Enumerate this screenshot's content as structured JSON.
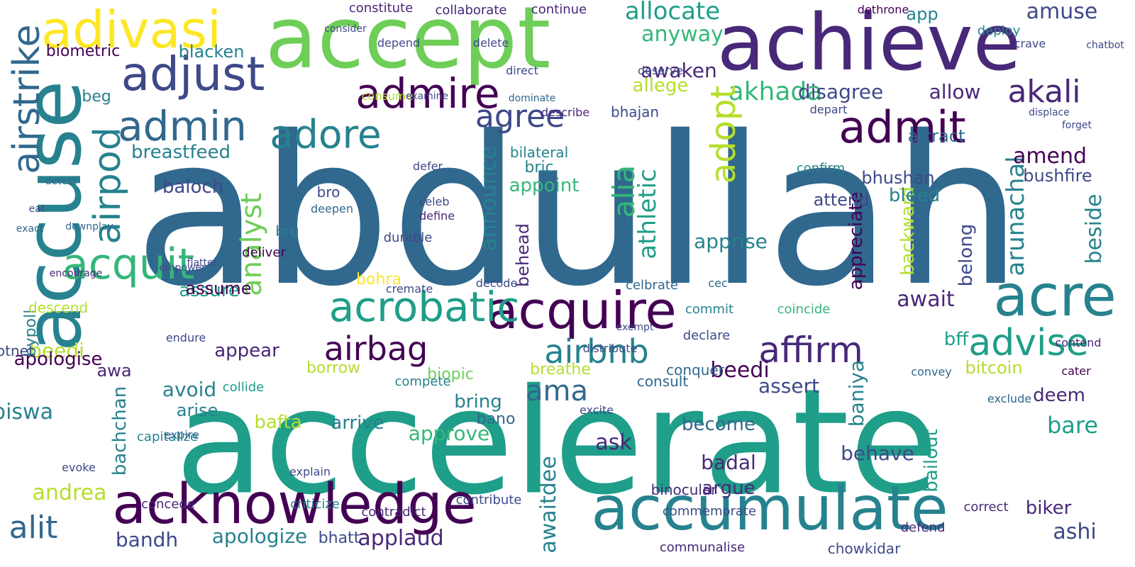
{
  "words": {
    "abdullah": "abdullah",
    "accelerate": "accelerate",
    "accept": "accept",
    "achieve": "achieve",
    "accuse": "accuse",
    "adivasi": "adivasi",
    "acknowledge": "acknowledge",
    "accumulate": "accumulate",
    "acquire": "acquire",
    "acre": "acre",
    "acrobatic": "acrobatic",
    "adjust": "adjust",
    "admire": "admire",
    "admit": "admit",
    "agree": "agree",
    "adore": "adore",
    "admin": "admin",
    "affirm": "affirm",
    "airbag": "airbag",
    "airbnb": "airbnb",
    "advise": "advise",
    "akhada": "akhada",
    "akali": "akali",
    "allocate": "allocate",
    "amuse": "amuse",
    "anyway": "anyway",
    "allow": "allow",
    "airstrike": "airstrike",
    "acquit": "acquit",
    "airpod": "airpod",
    "adopt": "adopt",
    "analyst": "analyst",
    "alia": "alia",
    "announce": "announce",
    "athletic": "athletic",
    "arunachal": "arunachal",
    "beside": "beside",
    "amend": "amend",
    "bushfire": "bushfire",
    "attract": "attract",
    "alit": "alit",
    "andrea": "andrea",
    "beedi": "beedi",
    "apologise": "apologise",
    "ama": "ama",
    "awaitdee": "awaitdee",
    "bachchan": "bachchan",
    "bailout": "bailout",
    "appreciate": "appreciate",
    "backward": "backward",
    "await": "await",
    "applaud": "applaud",
    "apologize": "apologize",
    "bandh": "bandh",
    "ashi": "ashi",
    "biker": "biker",
    "badal": "badal",
    "argue": "argue",
    "assure": "assure",
    "assume": "assume",
    "bypoll": "bypoll",
    "awa": "awa",
    "avoid": "avoid",
    "arise": "arise",
    "arrive": "arrive",
    "appear": "appear",
    "approve": "approve",
    "bring": "bring",
    "bafta": "bafta",
    "ask": "ask",
    "become": "become",
    "assert": "assert",
    "baniya": "baniya",
    "behave": "behave",
    "bare": "bare",
    "bitcoin": "bitcoin",
    "bff": "bff",
    "belong": "belong",
    "bleed": "bleed",
    "bhushan": "bhushan",
    "attend": "attend",
    "apprise": "apprise",
    "baloch": "baloch",
    "breastfeed": "breastfeed",
    "blacken": "blacken",
    "biometric": "biometric",
    "awaken": "awaken",
    "allege": "allege",
    "disagree": "disagree",
    "app": "app",
    "beg": "beg",
    "appoint": "appoint",
    "bilateral": "bilateral",
    "bric": "bric",
    "behead": "behead",
    "bohra": "bohra",
    "borrow": "borrow",
    "biopic": "biopic",
    "breathe": "breathe",
    "bano": "bano",
    "bhatt": "bhatt",
    "deliver": "deliver",
    "descend": "descend",
    "botnet": "botnet",
    "biswa": "biswa",
    "conquer": "conquer",
    "consult": "consult",
    "chowkidar": "chowkidar",
    "commemorate": "commemorate",
    "criticize": "criticize",
    "contradict": "contradict",
    "contribute": "contribute",
    "celbrate": "celbrate",
    "collide": "collide",
    "compete": "compete",
    "deem": "deem",
    "concede": "concede",
    "communalise": "communalise",
    "defend": "defend",
    "correct": "correct",
    "capitalize": "capitalize",
    "binocular": "binocular",
    "commit": "commit",
    "confirm": "confirm",
    "collaborate": "collaborate",
    "constitute": "constitute",
    "continue": "continue",
    "dethrone": "dethrone",
    "deploy": "deploy",
    "crave": "crave",
    "chatbot": "chatbot",
    "coincide": "coincide",
    "convey": "convey",
    "contend": "contend",
    "cater": "cater",
    "exclude": "exclude",
    "evoke": "evoke",
    "explain": "explain",
    "expire": "expire",
    "excite": "excite",
    "distribute": "distribute",
    "decode": "decode",
    "define": "define",
    "celeb": "celeb",
    "deepen": "deepen",
    "bro": "bro",
    "bru": "bru",
    "cremate": "cremate",
    "endure": "endure",
    "encourage": "encourage",
    "empower": "empower",
    "flatter": "flatter",
    "eat": "eat",
    "detect": "detect",
    "downplay": "downplay",
    "exact": "exact",
    "direct": "direct",
    "deserve": "deserve",
    "dominate": "dominate",
    "describe": "describe",
    "depart": "depart",
    "displace": "displace",
    "forget": "forget",
    "delete": "delete",
    "depend": "depend",
    "consider": "consider",
    "bhajan": "bhajan",
    "exempt": "exempt",
    "declare": "declare",
    "cec": "cec",
    "durable": "durable",
    "defer": "defer",
    "consume": "consume",
    "examine": "examine"
  }
}
